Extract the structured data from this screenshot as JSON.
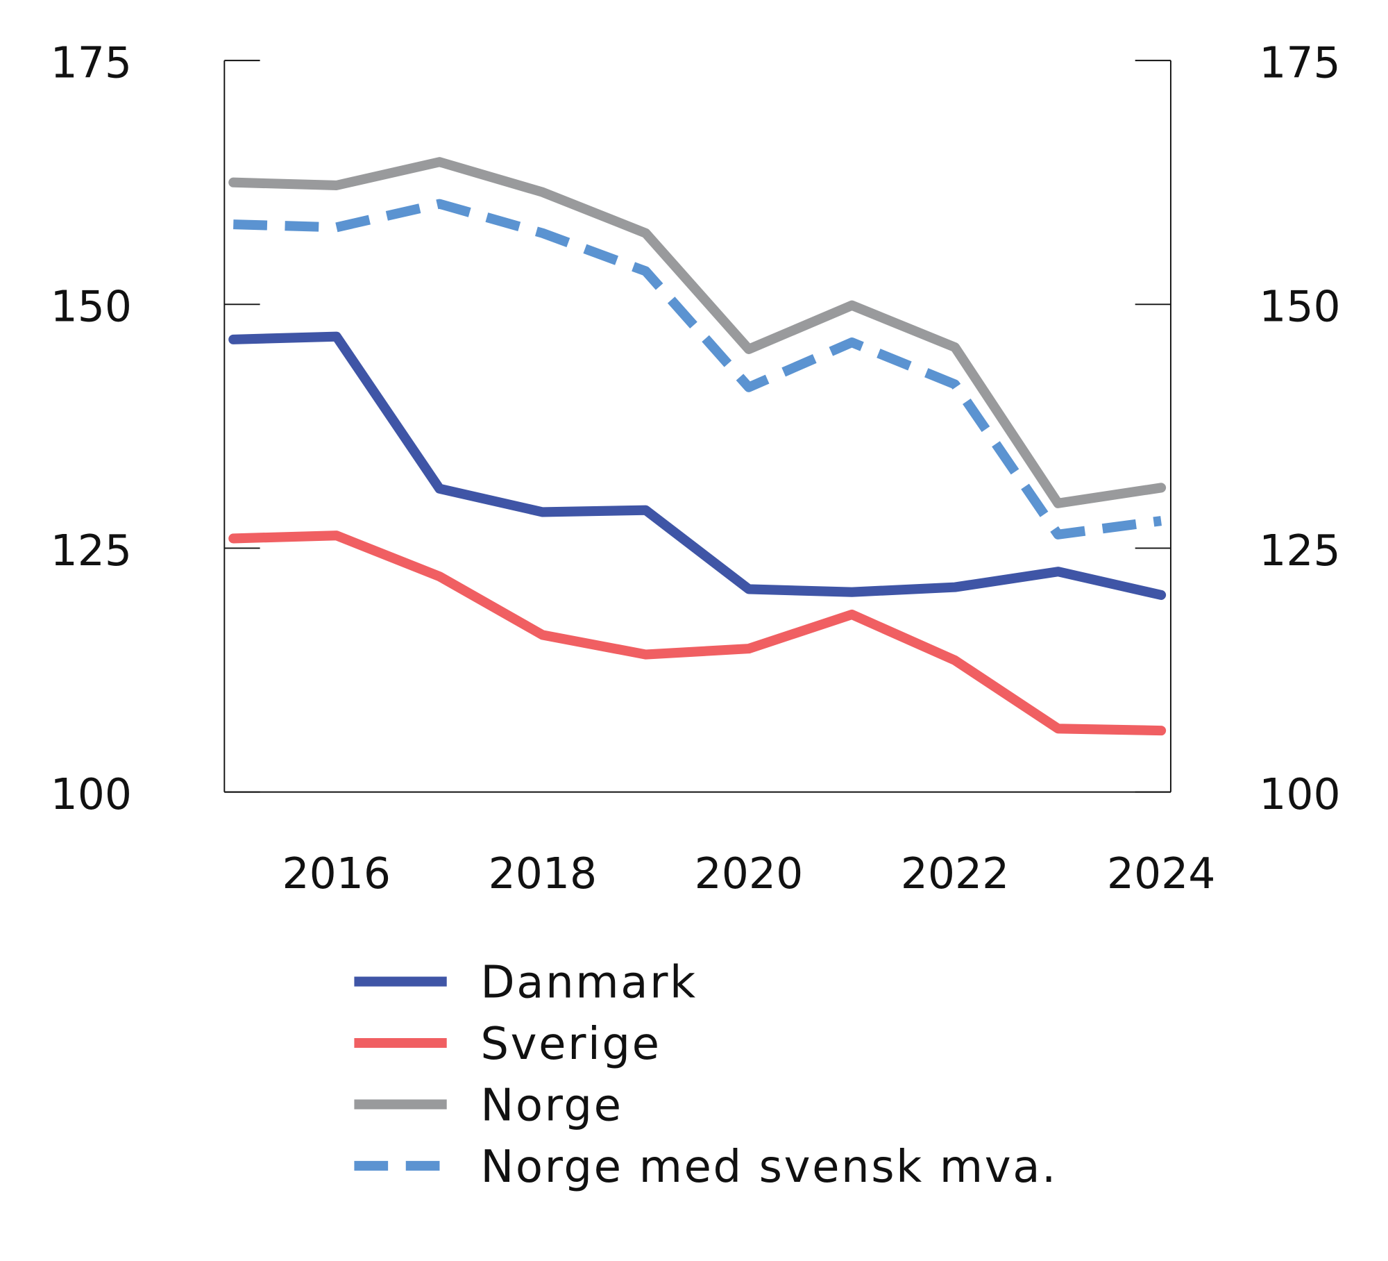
{
  "chart_data": {
    "type": "line",
    "x": [
      2015,
      2016,
      2017,
      2018,
      2019,
      2020,
      2021,
      2022,
      2023,
      2024
    ],
    "xticks": [
      "2016",
      "2018",
      "2020",
      "2022",
      "2024"
    ],
    "yticks": [
      "100",
      "125",
      "150",
      "175"
    ],
    "ylim": [
      100,
      175
    ],
    "xlim": [
      2015,
      2024
    ],
    "grid": false,
    "right_axis_mirrored": true,
    "legend_placement": "bottom",
    "series": [
      {
        "name": "Danmark",
        "color": "#3f55a6",
        "dash": false,
        "values": [
          146.4,
          146.7,
          131.1,
          128.7,
          128.9,
          120.8,
          120.5,
          121.0,
          122.6,
          120.2
        ]
      },
      {
        "name": "Sverige",
        "color": "#f05f62",
        "dash": false,
        "values": [
          126.0,
          126.3,
          122.1,
          116.1,
          114.1,
          114.7,
          118.2,
          113.5,
          106.5,
          106.3
        ]
      },
      {
        "name": "Norge",
        "color": "#999a9c",
        "dash": false,
        "values": [
          162.5,
          162.2,
          164.6,
          161.5,
          157.3,
          145.4,
          149.9,
          145.6,
          129.6,
          131.2
        ]
      },
      {
        "name": "Norge med svensk mva.",
        "color": "#5b93d1",
        "dash": true,
        "values": [
          158.2,
          157.9,
          160.3,
          157.3,
          153.4,
          141.5,
          146.1,
          141.8,
          126.4,
          127.8
        ]
      }
    ]
  }
}
